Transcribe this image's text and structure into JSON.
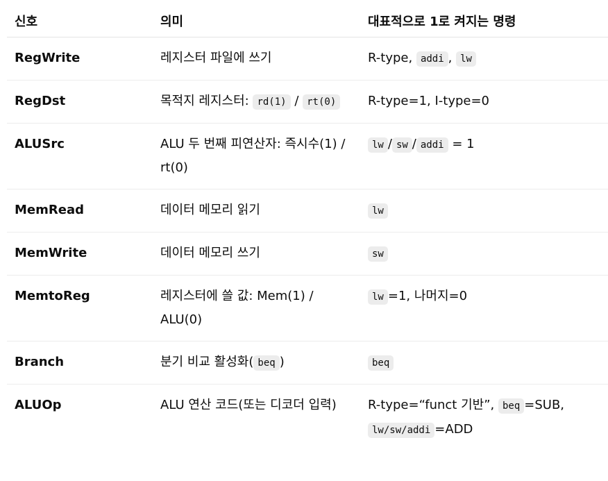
{
  "headers": {
    "signal": "신호",
    "meaning": "의미",
    "typical": "대표적으로 1로 켜지는 명령"
  },
  "rows": [
    {
      "signal": "RegWrite",
      "meaning": [
        {
          "t": "레지스터 파일에 쓰기"
        }
      ],
      "typical": [
        {
          "t": "R-type, "
        },
        {
          "c": "addi"
        },
        {
          "t": ", "
        },
        {
          "c": "lw"
        }
      ]
    },
    {
      "signal": "RegDst",
      "meaning": [
        {
          "t": "목적지 레지스터: "
        },
        {
          "c": "rd(1)"
        },
        {
          "t": " / "
        },
        {
          "c": "rt(0)"
        }
      ],
      "typical": [
        {
          "t": "R-type=1, I-type=0"
        }
      ]
    },
    {
      "signal": "ALUSrc",
      "meaning": [
        {
          "t": "ALU 두 번째 피연산자: 즉시수(1) / rt(0)"
        }
      ],
      "typical": [
        {
          "c": "lw"
        },
        {
          "t": "/"
        },
        {
          "c": "sw"
        },
        {
          "t": "/"
        },
        {
          "c": "addi"
        },
        {
          "t": " = 1"
        }
      ]
    },
    {
      "signal": "MemRead",
      "meaning": [
        {
          "t": "데이터 메모리 읽기"
        }
      ],
      "typical": [
        {
          "c": "lw"
        }
      ]
    },
    {
      "signal": "MemWrite",
      "meaning": [
        {
          "t": "데이터 메모리 쓰기"
        }
      ],
      "typical": [
        {
          "c": "sw"
        }
      ]
    },
    {
      "signal": "MemtoReg",
      "meaning": [
        {
          "t": "레지스터에 쓸 값: Mem(1) / ALU(0)"
        }
      ],
      "typical": [
        {
          "c": "lw"
        },
        {
          "t": "=1, 나머지=0"
        }
      ]
    },
    {
      "signal": "Branch",
      "meaning": [
        {
          "t": "분기 비교 활성화("
        },
        {
          "c": "beq"
        },
        {
          "t": ")"
        }
      ],
      "typical": [
        {
          "c": "beq"
        }
      ]
    },
    {
      "signal": "ALUOp",
      "meaning": [
        {
          "t": "ALU 연산 코드(또는 디코더 입력)"
        }
      ],
      "typical": [
        {
          "t": "R-type=“funct 기반”, "
        },
        {
          "c": "beq"
        },
        {
          "t": "=SUB, "
        },
        {
          "c": "lw/sw/addi"
        },
        {
          "t": "=ADD"
        }
      ]
    }
  ]
}
